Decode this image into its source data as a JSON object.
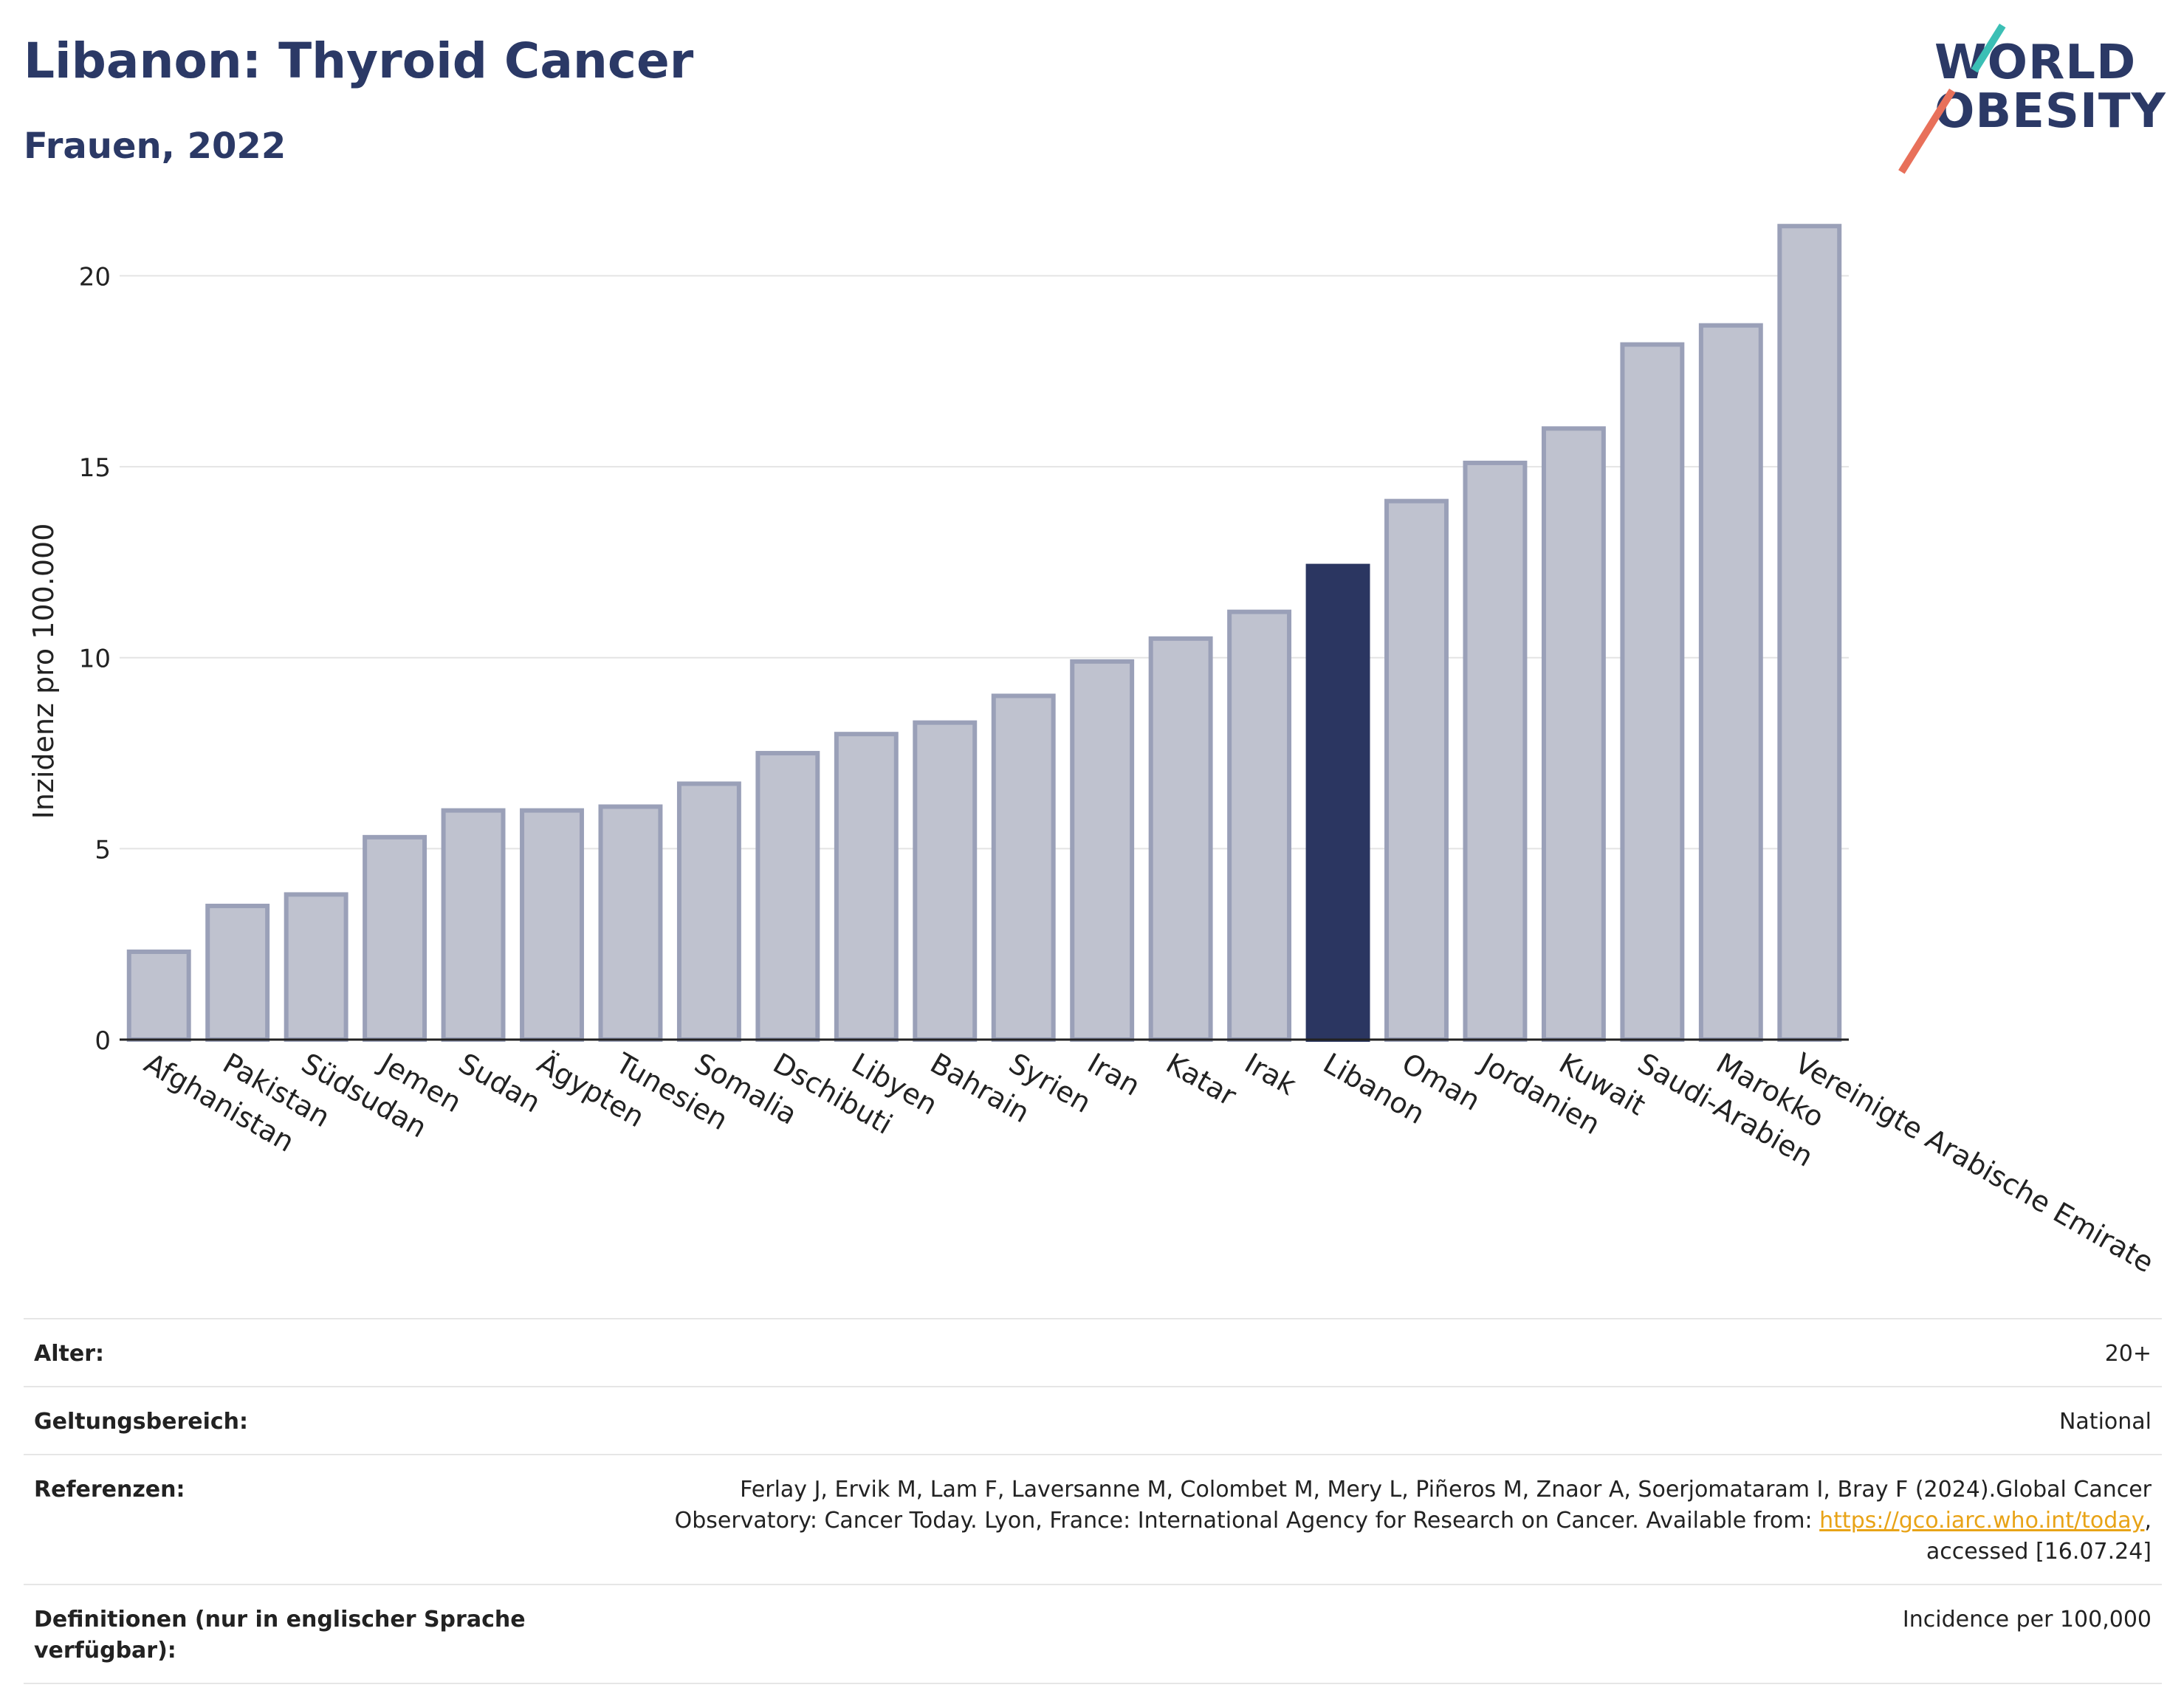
{
  "header": {
    "title": "Libanon: Thyroid Cancer",
    "subtitle": "Frauen, 2022"
  },
  "logo": {
    "line1": "WORLD",
    "line2": "OBESITY"
  },
  "colors": {
    "bar": "#bfc2cf",
    "bar_edge": "#9aa0b8",
    "highlight": "#2b3661",
    "title": "#2b3966",
    "link": "#e8a317"
  },
  "chart_data": {
    "type": "bar",
    "ylabel": "Inzidenz pro 100.000",
    "ylim": [
      0,
      22
    ],
    "yticks": [
      0,
      5,
      10,
      15,
      20
    ],
    "grid": true,
    "highlight": "Libanon",
    "categories": [
      "Afghanistan",
      "Pakistan",
      "Südsudan",
      "Jemen",
      "Sudan",
      "Ägypten",
      "Tunesien",
      "Somalia",
      "Dschibuti",
      "Libyen",
      "Bahrain",
      "Syrien",
      "Iran",
      "Katar",
      "Irak",
      "Libanon",
      "Oman",
      "Jordanien",
      "Kuwait",
      "Saudi-Arabien",
      "Marokko",
      "Vereinigte Arabische Emirate"
    ],
    "values": [
      2.3,
      3.5,
      3.8,
      5.3,
      6.0,
      6.0,
      6.1,
      6.7,
      7.5,
      8.0,
      8.3,
      9.0,
      9.9,
      10.5,
      11.2,
      12.4,
      14.1,
      15.1,
      16.0,
      18.2,
      18.7,
      21.3
    ]
  },
  "info": {
    "age_label": "Alter:",
    "age_value": "20+",
    "scope_label": "Geltungsbereich:",
    "scope_value": "National",
    "ref_label": "Referenzen:",
    "ref_text_1": "Ferlay J, Ervik M, Lam F, Laversanne M, Colombet M, Mery L, Piñeros M, Znaor A, Soerjomataram I, Bray F (2024).Global Cancer",
    "ref_text_2": "Observatory: Cancer Today. Lyon, France: International Agency for Research on Cancer. Available from: ",
    "ref_link": "https://gco.iarc.who.int/today",
    "ref_text_3": ",",
    "ref_text_4": "accessed [16.07.24]",
    "def_label_1": "Definitionen (nur in englischer Sprache",
    "def_label_2": "verfügbar):",
    "def_value": "Incidence per 100,000"
  }
}
